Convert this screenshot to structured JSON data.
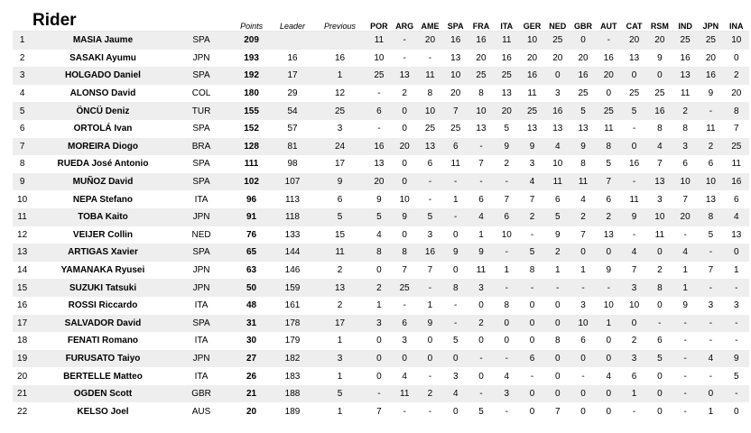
{
  "header": {
    "title": "Rider",
    "points": "Points",
    "leader": "Leader",
    "previous": "Previous",
    "races": [
      "POR",
      "ARG",
      "AME",
      "SPA",
      "FRA",
      "ITA",
      "GER",
      "NED",
      "GBR",
      "AUT",
      "CAT",
      "RSM",
      "IND",
      "JPN",
      "INA"
    ]
  },
  "riders": [
    {
      "pos": "1",
      "name": "MASIA Jaume",
      "nat": "SPA",
      "points": "209",
      "leader": "",
      "previous": "",
      "results": [
        "11",
        "-",
        "20",
        "16",
        "16",
        "11",
        "10",
        "25",
        "0",
        "-",
        "20",
        "20",
        "25",
        "25",
        "10"
      ]
    },
    {
      "pos": "2",
      "name": "SASAKI Ayumu",
      "nat": "JPN",
      "points": "193",
      "leader": "16",
      "previous": "16",
      "results": [
        "10",
        "-",
        "-",
        "13",
        "20",
        "16",
        "20",
        "20",
        "20",
        "16",
        "13",
        "9",
        "16",
        "20",
        "0"
      ]
    },
    {
      "pos": "3",
      "name": "HOLGADO Daniel",
      "nat": "SPA",
      "points": "192",
      "leader": "17",
      "previous": "1",
      "results": [
        "25",
        "13",
        "11",
        "10",
        "25",
        "25",
        "16",
        "0",
        "16",
        "20",
        "0",
        "0",
        "13",
        "16",
        "2"
      ]
    },
    {
      "pos": "4",
      "name": "ALONSO David",
      "nat": "COL",
      "points": "180",
      "leader": "29",
      "previous": "12",
      "results": [
        "-",
        "2",
        "8",
        "20",
        "8",
        "13",
        "11",
        "3",
        "25",
        "0",
        "25",
        "25",
        "11",
        "9",
        "20"
      ]
    },
    {
      "pos": "5",
      "name": "ÖNCÜ Deniz",
      "nat": "TUR",
      "points": "155",
      "leader": "54",
      "previous": "25",
      "results": [
        "6",
        "0",
        "10",
        "7",
        "10",
        "20",
        "25",
        "16",
        "5",
        "25",
        "5",
        "16",
        "2",
        "-",
        "8"
      ]
    },
    {
      "pos": "6",
      "name": "ORTOLÁ Ivan",
      "nat": "SPA",
      "points": "152",
      "leader": "57",
      "previous": "3",
      "results": [
        "-",
        "0",
        "25",
        "25",
        "13",
        "5",
        "13",
        "13",
        "13",
        "11",
        "-",
        "8",
        "8",
        "11",
        "7"
      ]
    },
    {
      "pos": "7",
      "name": "MOREIRA Diogo",
      "nat": "BRA",
      "points": "128",
      "leader": "81",
      "previous": "24",
      "results": [
        "16",
        "20",
        "13",
        "6",
        "-",
        "9",
        "9",
        "4",
        "9",
        "8",
        "0",
        "4",
        "3",
        "2",
        "25"
      ]
    },
    {
      "pos": "8",
      "name": "RUEDA José Antonio",
      "nat": "SPA",
      "points": "111",
      "leader": "98",
      "previous": "17",
      "results": [
        "13",
        "0",
        "6",
        "11",
        "7",
        "2",
        "3",
        "10",
        "8",
        "5",
        "16",
        "7",
        "6",
        "6",
        "11"
      ]
    },
    {
      "pos": "9",
      "name": "MUÑOZ David",
      "nat": "SPA",
      "points": "102",
      "leader": "107",
      "previous": "9",
      "results": [
        "20",
        "0",
        "-",
        "-",
        "-",
        "-",
        "4",
        "11",
        "11",
        "7",
        "-",
        "13",
        "10",
        "10",
        "16"
      ]
    },
    {
      "pos": "10",
      "name": "NEPA Stefano",
      "nat": "ITA",
      "points": "96",
      "leader": "113",
      "previous": "6",
      "results": [
        "9",
        "10",
        "-",
        "1",
        "6",
        "7",
        "7",
        "6",
        "4",
        "6",
        "11",
        "3",
        "7",
        "13",
        "6"
      ]
    },
    {
      "pos": "11",
      "name": "TOBA Kaito",
      "nat": "JPN",
      "points": "91",
      "leader": "118",
      "previous": "5",
      "results": [
        "5",
        "9",
        "5",
        "-",
        "4",
        "6",
        "2",
        "5",
        "2",
        "2",
        "9",
        "10",
        "20",
        "8",
        "4"
      ]
    },
    {
      "pos": "12",
      "name": "VEIJER Collin",
      "nat": "NED",
      "points": "76",
      "leader": "133",
      "previous": "15",
      "results": [
        "4",
        "0",
        "3",
        "0",
        "1",
        "10",
        "-",
        "9",
        "7",
        "13",
        "-",
        "11",
        "-",
        "5",
        "13"
      ]
    },
    {
      "pos": "13",
      "name": "ARTIGAS Xavier",
      "nat": "SPA",
      "points": "65",
      "leader": "144",
      "previous": "11",
      "results": [
        "8",
        "8",
        "16",
        "9",
        "9",
        "-",
        "5",
        "2",
        "0",
        "0",
        "4",
        "0",
        "4",
        "-",
        "0"
      ]
    },
    {
      "pos": "14",
      "name": "YAMANAKA Ryusei",
      "nat": "JPN",
      "points": "63",
      "leader": "146",
      "previous": "2",
      "results": [
        "0",
        "7",
        "7",
        "0",
        "11",
        "1",
        "8",
        "1",
        "1",
        "9",
        "7",
        "2",
        "1",
        "7",
        "1"
      ]
    },
    {
      "pos": "15",
      "name": "SUZUKI Tatsuki",
      "nat": "JPN",
      "points": "50",
      "leader": "159",
      "previous": "13",
      "results": [
        "2",
        "25",
        "-",
        "8",
        "3",
        "-",
        "-",
        "-",
        "-",
        "-",
        "3",
        "8",
        "1",
        "-",
        "-"
      ]
    },
    {
      "pos": "16",
      "name": "ROSSI Riccardo",
      "nat": "ITA",
      "points": "48",
      "leader": "161",
      "previous": "2",
      "results": [
        "1",
        "-",
        "1",
        "-",
        "0",
        "8",
        "0",
        "0",
        "3",
        "10",
        "10",
        "0",
        "9",
        "3",
        "3"
      ]
    },
    {
      "pos": "17",
      "name": "SALVADOR David",
      "nat": "SPA",
      "points": "31",
      "leader": "178",
      "previous": "17",
      "results": [
        "3",
        "6",
        "9",
        "-",
        "2",
        "0",
        "0",
        "0",
        "10",
        "1",
        "0",
        "-",
        "-",
        "-",
        "-"
      ]
    },
    {
      "pos": "18",
      "name": "FENATI Romano",
      "nat": "ITA",
      "points": "30",
      "leader": "179",
      "previous": "1",
      "results": [
        "0",
        "3",
        "0",
        "5",
        "0",
        "0",
        "0",
        "8",
        "6",
        "0",
        "2",
        "6",
        "-",
        "-",
        "-"
      ]
    },
    {
      "pos": "19",
      "name": "FURUSATO Taiyo",
      "nat": "JPN",
      "points": "27",
      "leader": "182",
      "previous": "3",
      "results": [
        "0",
        "0",
        "0",
        "0",
        "-",
        "-",
        "6",
        "0",
        "0",
        "0",
        "3",
        "5",
        "-",
        "4",
        "9"
      ]
    },
    {
      "pos": "20",
      "name": "BERTELLE Matteo",
      "nat": "ITA",
      "points": "26",
      "leader": "183",
      "previous": "1",
      "results": [
        "0",
        "4",
        "-",
        "3",
        "0",
        "4",
        "-",
        "0",
        "-",
        "4",
        "6",
        "0",
        "-",
        "-",
        "5"
      ]
    },
    {
      "pos": "21",
      "name": "OGDEN Scott",
      "nat": "GBR",
      "points": "21",
      "leader": "188",
      "previous": "5",
      "results": [
        "-",
        "11",
        "2",
        "4",
        "-",
        "3",
        "0",
        "0",
        "0",
        "0",
        "1",
        "0",
        "-",
        "0",
        "-"
      ]
    },
    {
      "pos": "22",
      "name": "KELSO Joel",
      "nat": "AUS",
      "points": "20",
      "leader": "189",
      "previous": "1",
      "results": [
        "7",
        "-",
        "-",
        "0",
        "5",
        "-",
        "0",
        "7",
        "0",
        "0",
        "-",
        "0",
        "-",
        "1",
        "0"
      ]
    }
  ]
}
